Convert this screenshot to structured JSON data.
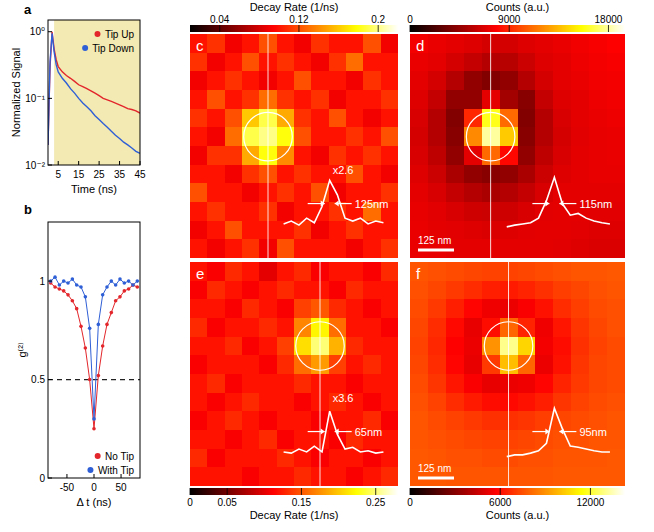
{
  "chart_data": [
    {
      "type": "line",
      "title": "a",
      "xlabel": "Time (ns)",
      "ylabel": "Normalized Signal",
      "log": "y",
      "legend": "upper right",
      "xlim": [
        0,
        45
      ],
      "ylim": [
        0.01,
        1.5
      ],
      "xticks": [
        5,
        15,
        25,
        35,
        45
      ],
      "yticks": [
        {
          "value": 0.01,
          "label": "10⁻²"
        },
        {
          "value": 0.1,
          "label": "10⁻¹"
        },
        {
          "value": 1,
          "label": "10⁰"
        }
      ],
      "shaded_range": [
        3,
        45
      ],
      "x": [
        0,
        1,
        2,
        3,
        4,
        5,
        7,
        9,
        11,
        13,
        15,
        17,
        19,
        21,
        23,
        25,
        27,
        29,
        31,
        33,
        35,
        37,
        39,
        41,
        43,
        45
      ],
      "series": [
        {
          "name": "Tip Up",
          "color": "#e3262b",
          "line_style": "solid",
          "values": [
            0.02,
            0.3,
            1,
            0.55,
            0.38,
            0.3,
            0.25,
            0.22,
            0.2,
            0.18,
            0.16,
            0.15,
            0.14,
            0.13,
            0.12,
            0.11,
            0.1,
            0.095,
            0.09,
            0.085,
            0.08,
            0.075,
            0.07,
            0.068,
            0.065,
            0.06
          ]
        },
        {
          "name": "Tip Down",
          "color": "#2f5fd6",
          "line_style": "solid",
          "values": [
            0.02,
            0.35,
            0.95,
            0.5,
            0.32,
            0.25,
            0.2,
            0.17,
            0.14,
            0.12,
            0.1,
            0.085,
            0.075,
            0.065,
            0.055,
            0.048,
            0.042,
            0.037,
            0.032,
            0.028,
            0.025,
            0.022,
            0.02,
            0.018,
            0.016,
            0.015
          ]
        }
      ]
    },
    {
      "type": "scatter",
      "title": "b",
      "xlabel": "Δ t (ns)",
      "ylabel": "g⁽²⁾",
      "legend": "lower right",
      "xlim": [
        -85,
        85
      ],
      "ylim": [
        0,
        1.3
      ],
      "xticks": [
        -50,
        0,
        50
      ],
      "yticks": [
        0,
        0.5,
        1
      ],
      "hline": 0.5,
      "x": [
        -80,
        -72,
        -64,
        -56,
        -48,
        -40,
        -32,
        -24,
        -16,
        -8,
        0,
        8,
        16,
        24,
        32,
        40,
        48,
        56,
        64,
        72,
        80
      ],
      "series": [
        {
          "name": "No Tip",
          "color": "#e3262b",
          "marker": "circle",
          "values": [
            0.99,
            0.97,
            0.96,
            0.95,
            0.93,
            0.9,
            0.86,
            0.77,
            0.66,
            0.5,
            0.25,
            0.52,
            0.67,
            0.78,
            0.84,
            0.9,
            0.92,
            0.95,
            0.96,
            0.98,
            0.97
          ]
        },
        {
          "name": "With Tip",
          "color": "#2f5fd6",
          "marker": "circle",
          "values": [
            1.0,
            1.02,
            0.98,
            1.0,
            0.99,
            1.01,
            0.98,
            0.97,
            0.92,
            0.76,
            0.3,
            0.78,
            0.93,
            0.97,
            1.0,
            0.98,
            1.01,
            0.99,
            1.0,
            0.98,
            1.0
          ]
        }
      ]
    },
    {
      "type": "heatmap",
      "title": "c",
      "colorbar": {
        "label": "Decay Rate (1/ns)",
        "range": [
          0.01,
          0.22
        ],
        "ticks": [
          0.04,
          0.12,
          0.2
        ]
      },
      "profile": {
        "values": [
          0.2,
          0.25,
          0.18,
          0.3,
          0.22,
          0.5,
          0.95,
          0.7,
          0.3,
          0.25,
          0.3,
          0.2,
          0.25,
          0.22
        ],
        "scale_label": "x2.6",
        "width_label": "125nm"
      },
      "cells": [
        [
          0.1,
          0.11,
          0.09,
          0.1,
          0.12,
          0.1,
          0.09,
          0.11,
          0.1,
          0.1,
          0.12,
          0.09
        ],
        [
          0.11,
          0.09,
          0.1,
          0.12,
          0.1,
          0.11,
          0.1,
          0.09,
          0.11,
          0.13,
          0.1,
          0.1
        ],
        [
          0.09,
          0.1,
          0.11,
          0.1,
          0.09,
          0.1,
          0.12,
          0.1,
          0.1,
          0.09,
          0.11,
          0.1
        ],
        [
          0.1,
          0.12,
          0.1,
          0.11,
          0.13,
          0.11,
          0.1,
          0.11,
          0.09,
          0.1,
          0.1,
          0.11
        ],
        [
          0.11,
          0.1,
          0.12,
          0.16,
          0.19,
          0.15,
          0.11,
          0.1,
          0.12,
          0.1,
          0.09,
          0.1
        ],
        [
          0.1,
          0.09,
          0.13,
          0.19,
          0.2,
          0.18,
          0.12,
          0.1,
          0.1,
          0.11,
          0.1,
          0.12
        ],
        [
          0.09,
          0.11,
          0.11,
          0.15,
          0.18,
          0.14,
          0.1,
          0.09,
          0.11,
          0.1,
          0.11,
          0.1
        ],
        [
          0.1,
          0.1,
          0.09,
          0.11,
          0.12,
          0.1,
          0.11,
          0.1,
          0.1,
          0.12,
          0.1,
          0.09
        ],
        [
          0.12,
          0.1,
          0.1,
          0.09,
          0.1,
          0.11,
          0.1,
          0.12,
          0.09,
          0.1,
          0.1,
          0.11
        ],
        [
          0.1,
          0.11,
          0.1,
          0.1,
          0.11,
          0.09,
          0.1,
          0.1,
          0.11,
          0.1,
          0.13,
          0.1
        ],
        [
          0.09,
          0.1,
          0.12,
          0.1,
          0.1,
          0.1,
          0.11,
          0.09,
          0.1,
          0.11,
          0.1,
          0.1
        ],
        [
          0.1,
          0.09,
          0.1,
          0.11,
          0.09,
          0.12,
          0.1,
          0.1,
          0.1,
          0.09,
          0.1,
          0.11
        ]
      ]
    },
    {
      "type": "heatmap",
      "title": "d",
      "scale_bar_label": "125 nm",
      "colorbar": {
        "label": "Counts (a.u.)",
        "range": [
          0,
          19500
        ],
        "ticks": [
          0,
          9000,
          18000
        ]
      },
      "profile": {
        "values": [
          0.15,
          0.18,
          0.2,
          0.22,
          0.3,
          0.6,
          1.0,
          0.55,
          0.35,
          0.38,
          0.3,
          0.25,
          0.22,
          0.2
        ],
        "width_label": "115nm"
      },
      "cells": [
        [
          7500,
          7200,
          7000,
          6800,
          6500,
          6500,
          6800,
          7000,
          7200,
          7400,
          7600,
          7800
        ],
        [
          7200,
          7000,
          6500,
          6000,
          5500,
          5600,
          6200,
          6800,
          7000,
          7300,
          7500,
          7600
        ],
        [
          7000,
          6500,
          5500,
          4500,
          4000,
          4500,
          5500,
          6500,
          7000,
          7200,
          7400,
          7500
        ],
        [
          6800,
          6000,
          4500,
          4500,
          7000,
          5000,
          4200,
          6000,
          6800,
          7000,
          7300,
          7400
        ],
        [
          6600,
          5500,
          4000,
          9000,
          16000,
          11000,
          4000,
          5500,
          6600,
          7000,
          7200,
          7300
        ],
        [
          6500,
          5500,
          4200,
          12000,
          18000,
          14000,
          4200,
          5500,
          6500,
          6900,
          7100,
          7200
        ],
        [
          6600,
          5800,
          4500,
          7000,
          11000,
          8000,
          4500,
          5800,
          6600,
          7000,
          7100,
          7200
        ],
        [
          6800,
          6200,
          5200,
          4500,
          4200,
          4500,
          5200,
          6200,
          6800,
          7000,
          7100,
          7100
        ],
        [
          7000,
          6600,
          6000,
          5500,
          5200,
          5500,
          6000,
          6600,
          7000,
          7000,
          7000,
          7000
        ],
        [
          7100,
          6900,
          6600,
          6300,
          6200,
          6300,
          6600,
          6900,
          7000,
          7000,
          6900,
          6900
        ],
        [
          7200,
          7000,
          6900,
          6800,
          6700,
          6800,
          6900,
          7000,
          7000,
          6900,
          6800,
          6800
        ],
        [
          7200,
          7100,
          7000,
          7000,
          7000,
          7000,
          7000,
          7000,
          6900,
          6800,
          6700,
          6700
        ]
      ]
    },
    {
      "type": "heatmap",
      "title": "e",
      "colorbar": {
        "label": "Decay Rate (1/ns)",
        "range": [
          0,
          0.28
        ],
        "ticks": [
          0,
          0.05,
          0.15,
          0.25
        ]
      },
      "profile": {
        "values": [
          0.2,
          0.18,
          0.25,
          0.2,
          0.3,
          0.2,
          0.9,
          0.5,
          0.25,
          0.28,
          0.2,
          0.22,
          0.18,
          0.2
        ],
        "scale_label": "x3.6",
        "width_label": "65nm"
      },
      "cells": [
        [
          0.12,
          0.11,
          0.13,
          0.12,
          0.1,
          0.12,
          0.13,
          0.11,
          0.12,
          0.12,
          0.11,
          0.13
        ],
        [
          0.11,
          0.13,
          0.12,
          0.11,
          0.12,
          0.13,
          0.12,
          0.12,
          0.11,
          0.13,
          0.12,
          0.12
        ],
        [
          0.12,
          0.12,
          0.11,
          0.13,
          0.12,
          0.11,
          0.14,
          0.15,
          0.13,
          0.12,
          0.11,
          0.12
        ],
        [
          0.13,
          0.11,
          0.12,
          0.12,
          0.13,
          0.12,
          0.17,
          0.22,
          0.16,
          0.12,
          0.12,
          0.11
        ],
        [
          0.12,
          0.12,
          0.13,
          0.11,
          0.12,
          0.14,
          0.21,
          0.25,
          0.19,
          0.13,
          0.12,
          0.12
        ],
        [
          0.11,
          0.12,
          0.12,
          0.12,
          0.11,
          0.13,
          0.16,
          0.18,
          0.14,
          0.12,
          0.13,
          0.12
        ],
        [
          0.12,
          0.13,
          0.11,
          0.12,
          0.12,
          0.12,
          0.13,
          0.12,
          0.12,
          0.11,
          0.12,
          0.12
        ],
        [
          0.12,
          0.11,
          0.12,
          0.13,
          0.12,
          0.12,
          0.11,
          0.12,
          0.13,
          0.12,
          0.11,
          0.12
        ],
        [
          0.11,
          0.12,
          0.13,
          0.12,
          0.11,
          0.12,
          0.12,
          0.11,
          0.12,
          0.12,
          0.13,
          0.11
        ],
        [
          0.12,
          0.12,
          0.11,
          0.12,
          0.13,
          0.11,
          0.12,
          0.12,
          0.11,
          0.13,
          0.12,
          0.12
        ],
        [
          0.13,
          0.11,
          0.12,
          0.12,
          0.12,
          0.13,
          0.12,
          0.11,
          0.12,
          0.12,
          0.11,
          0.12
        ],
        [
          0.12,
          0.12,
          0.12,
          0.11,
          0.12,
          0.12,
          0.13,
          0.12,
          0.12,
          0.11,
          0.12,
          0.13
        ]
      ]
    },
    {
      "type": "heatmap",
      "title": "f",
      "scale_bar_label": "125 nm",
      "colorbar": {
        "label": "Counts (a.u.)",
        "range": [
          0,
          14300
        ],
        "ticks": [
          0,
          6000,
          12000
        ]
      },
      "profile": {
        "values": [
          0.12,
          0.15,
          0.15,
          0.18,
          0.22,
          0.35,
          0.95,
          0.6,
          0.3,
          0.28,
          0.25,
          0.22,
          0.2,
          0.2
        ],
        "width_label": "95nm"
      },
      "cells": [
        [
          7600,
          7500,
          7400,
          7300,
          7200,
          7200,
          7300,
          7400,
          7500,
          7600,
          7600,
          7700
        ],
        [
          7500,
          7300,
          7000,
          6700,
          6400,
          6300,
          6500,
          6800,
          7100,
          7300,
          7500,
          7600
        ],
        [
          7400,
          7000,
          6400,
          5800,
          5400,
          5300,
          5600,
          6100,
          6700,
          7100,
          7400,
          7500
        ],
        [
          7300,
          6700,
          5900,
          5200,
          6000,
          8000,
          6500,
          5400,
          6200,
          6900,
          7300,
          7500
        ],
        [
          7200,
          6600,
          5700,
          5300,
          9000,
          13000,
          10500,
          5500,
          6000,
          6800,
          7200,
          7400
        ],
        [
          7300,
          6700,
          5800,
          5200,
          7000,
          10000,
          8000,
          5300,
          6100,
          6900,
          7300,
          7400
        ],
        [
          7400,
          6900,
          6200,
          5600,
          5200,
          5300,
          5400,
          5800,
          6500,
          7000,
          7300,
          7400
        ],
        [
          7500,
          7200,
          6700,
          6300,
          6000,
          5900,
          6100,
          6400,
          6900,
          7200,
          7400,
          7500
        ],
        [
          7600,
          7400,
          7200,
          7000,
          6800,
          6800,
          6900,
          7100,
          7300,
          7400,
          7500,
          7600
        ],
        [
          7600,
          7500,
          7400,
          7300,
          7200,
          7200,
          7300,
          7400,
          7500,
          7500,
          7600,
          7600
        ],
        [
          7700,
          7600,
          7500,
          7500,
          7400,
          7400,
          7500,
          7500,
          7600,
          7600,
          7600,
          7700
        ],
        [
          7700,
          7700,
          7600,
          7600,
          7600,
          7600,
          7600,
          7600,
          7700,
          7700,
          7700,
          7700
        ]
      ]
    }
  ]
}
